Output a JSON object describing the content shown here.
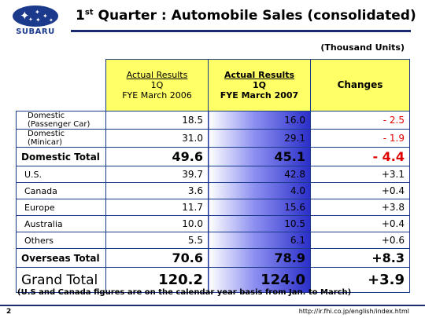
{
  "header": {
    "logo_text": "SUBARU",
    "title_prefix": "1",
    "title_sup": "st",
    "title_rest": " Quarter : Automobile Sales (consolidated)"
  },
  "units": "(Thousand Units)",
  "table": {
    "col1": {
      "line1": "Actual Results",
      "line2": "1Q",
      "line3": "FYE March 2006"
    },
    "col2": {
      "line1": "Actual Results",
      "line2": "1Q",
      "line3": "FYE March 2007"
    },
    "col3": "Changes",
    "rows": [
      {
        "label1": "Domestic",
        "label2": "(Passenger Car)",
        "v2006": "18.5",
        "v2007": "16.0",
        "change": "- 2.5"
      },
      {
        "label1": "Domestic",
        "label2": "(Minicar)",
        "v2006": "31.0",
        "v2007": "29.1",
        "change": "- 1.9"
      },
      {
        "label": "Domestic Total",
        "v2006": "49.6",
        "v2007": "45.1",
        "change": "- 4.4"
      },
      {
        "label": "U.S.",
        "v2006": "39.7",
        "v2007": "42.8",
        "change": "+3.1"
      },
      {
        "label": "Canada",
        "v2006": "3.6",
        "v2007": "4.0",
        "change": "+0.4"
      },
      {
        "label": "Europe",
        "v2006": "11.7",
        "v2007": "15.6",
        "change": "+3.8"
      },
      {
        "label": "Australia",
        "v2006": "10.0",
        "v2007": "10.5",
        "change": "+0.4"
      },
      {
        "label": "Others",
        "v2006": "5.5",
        "v2007": "6.1",
        "change": "+0.6"
      },
      {
        "label": "Overseas Total",
        "v2006": "70.6",
        "v2007": "78.9",
        "change": "+8.3"
      },
      {
        "label": "Grand Total",
        "v2006": "120.2",
        "v2007": "124.0",
        "change": "+3.9"
      }
    ]
  },
  "footnote": "(U.S and Canada figures are on the calendar year basis from Jan. to March)",
  "footer": {
    "page": "2",
    "url": "http://ir.fhi.co.jp/english/index.html"
  },
  "colors": {
    "brand_blue": "#1b3a8c",
    "header_yellow": "#ffff66",
    "negative_red": "#e00000"
  }
}
